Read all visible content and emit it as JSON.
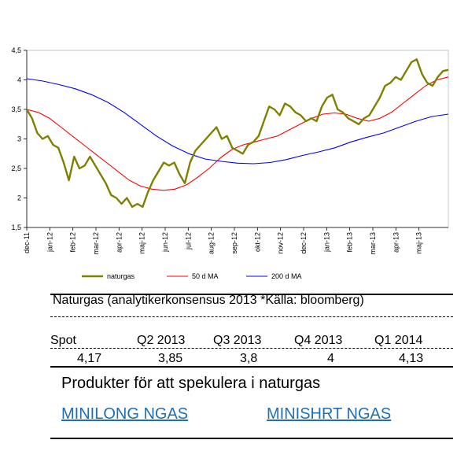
{
  "chart_data": {
    "type": "line",
    "ylim": [
      1.5,
      4.5
    ],
    "yticks": [
      "1,5",
      "2",
      "2,5",
      "3",
      "3,5",
      "4",
      "4,5"
    ],
    "xticks": [
      "dec-11",
      "jan-12",
      "feb-12",
      "mar-12",
      "apr-12",
      "maj-12",
      "jun-12",
      "jul-12",
      "aug-12",
      "sep-12",
      "okt-12",
      "nov-12",
      "dec-12",
      "jan-13",
      "feb-13",
      "mar-13",
      "apr-13",
      "maj-13"
    ],
    "grid": "none",
    "legend": "bottom",
    "series": [
      {
        "name": "naturgas",
        "color": "#808000",
        "values": [
          3.5,
          3.35,
          3.1,
          3.0,
          3.05,
          2.9,
          2.85,
          2.6,
          2.3,
          2.7,
          2.5,
          2.55,
          2.7,
          2.55,
          2.4,
          2.25,
          2.05,
          2.0,
          1.9,
          2.0,
          1.85,
          1.9,
          1.85,
          2.1,
          2.3,
          2.45,
          2.6,
          2.55,
          2.6,
          2.4,
          2.25,
          2.6,
          2.8,
          2.9,
          3.0,
          3.1,
          3.2,
          3.0,
          3.05,
          2.85,
          2.8,
          2.75,
          2.9,
          2.95,
          3.05,
          3.3,
          3.55,
          3.5,
          3.4,
          3.6,
          3.55,
          3.45,
          3.4,
          3.3,
          3.35,
          3.3,
          3.55,
          3.7,
          3.75,
          3.5,
          3.45,
          3.35,
          3.3,
          3.25,
          3.35,
          3.4,
          3.55,
          3.7,
          3.9,
          3.95,
          4.05,
          4.0,
          4.15,
          4.3,
          4.35,
          4.1,
          3.95,
          3.9,
          4.05,
          4.15,
          4.17
        ]
      },
      {
        "name": "50 d MA",
        "color": "#ff0000",
        "values": [
          3.5,
          3.45,
          3.35,
          3.2,
          3.05,
          2.9,
          2.75,
          2.6,
          2.45,
          2.3,
          2.2,
          2.15,
          2.13,
          2.15,
          2.22,
          2.35,
          2.5,
          2.68,
          2.82,
          2.9,
          2.95,
          3.0,
          3.05,
          3.15,
          3.25,
          3.35,
          3.42,
          3.44,
          3.42,
          3.35,
          3.3,
          3.35,
          3.45,
          3.6,
          3.75,
          3.9,
          4.0,
          4.05
        ]
      },
      {
        "name": "200 d MA",
        "color": "#0000ff",
        "values": [
          4.02,
          3.98,
          3.92,
          3.85,
          3.75,
          3.62,
          3.45,
          3.25,
          3.05,
          2.88,
          2.75,
          2.66,
          2.62,
          2.59,
          2.58,
          2.6,
          2.65,
          2.72,
          2.78,
          2.85,
          2.95,
          3.03,
          3.1,
          3.2,
          3.3,
          3.38,
          3.42
        ]
      }
    ]
  },
  "consensus": {
    "title": "Naturgas (analytikerkonsensus 2013 *Källa: bloomberg)",
    "headers": [
      "Spot",
      "Q2 2013",
      "Q3 2013",
      "Q4 2013",
      "Q1 2014"
    ],
    "values": [
      "4,17",
      "3,85",
      "3,8",
      "4",
      "4,13"
    ]
  },
  "products": {
    "title": "Produkter för att spekulera i naturgas",
    "links": [
      "MINILONG NGAS",
      "MINISHRT NGAS"
    ]
  },
  "colors": {
    "link": "#1f6fb6"
  }
}
